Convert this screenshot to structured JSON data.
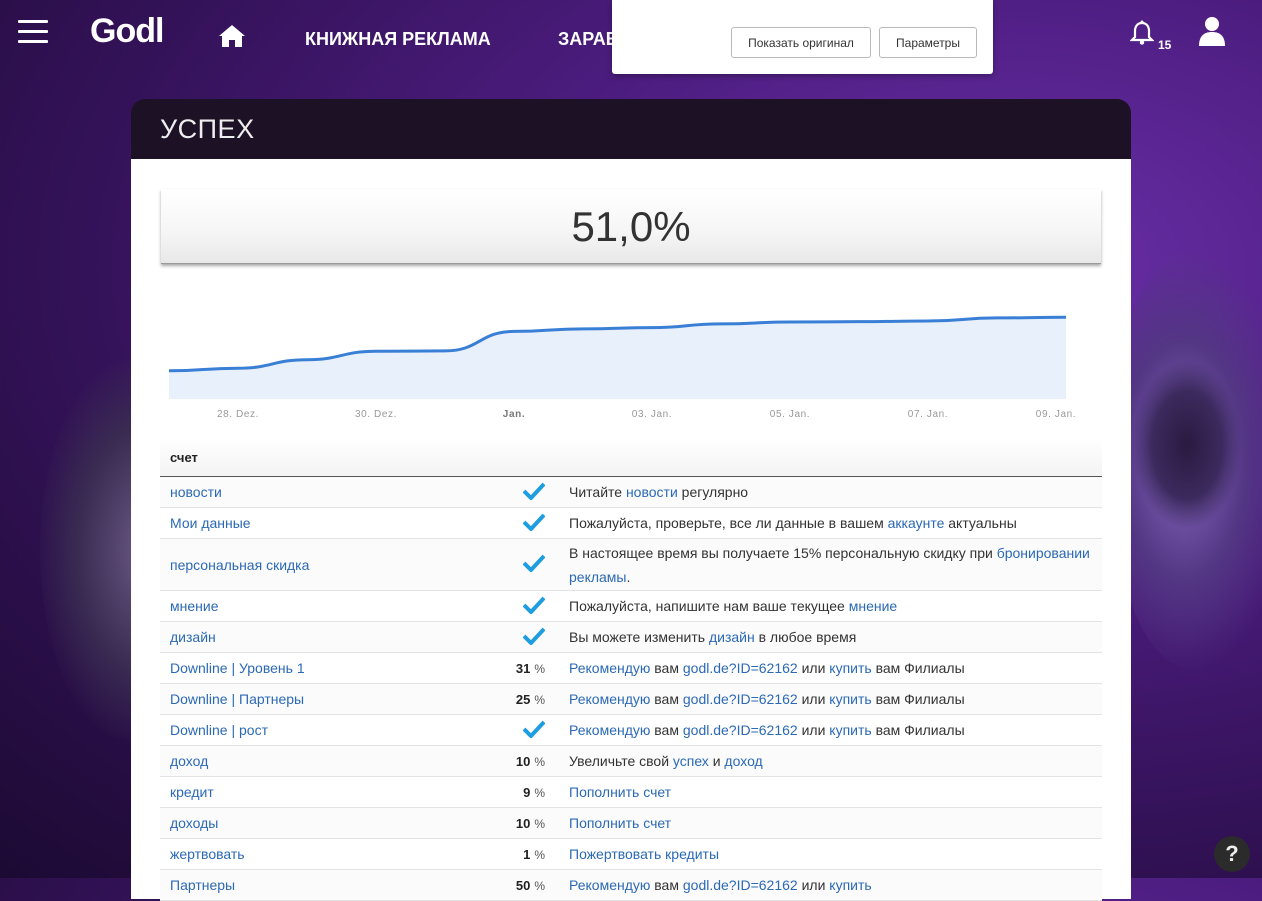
{
  "nav": {
    "logo": "Godl",
    "links": [
      "КНИЖНАЯ РЕКЛАМА",
      "ЗАРАБ"
    ],
    "notification_count": "15"
  },
  "popup": {
    "show_original": "Показать оригинал",
    "options": "Параметры"
  },
  "card": {
    "title": "УСПЕХ",
    "score": "51,0%"
  },
  "chart_data": {
    "type": "area",
    "x": [
      "27. Dez.",
      "28. Dez.",
      "29. Dez.",
      "30. Dez.",
      "31. Dez.",
      "Jan.",
      "02. Jan.",
      "03. Jan.",
      "04. Jan.",
      "05. Jan.",
      "06. Jan.",
      "07. Jan.",
      "08. Jan.",
      "09. Jan."
    ],
    "y": [
      34.0,
      34.8,
      37.5,
      40.2,
      40.3,
      46.5,
      47.3,
      47.7,
      48.9,
      49.5,
      49.6,
      49.8,
      50.8,
      51.0
    ],
    "x_tick_labels": [
      "28. Dez.",
      "30. Dez.",
      "Jan.",
      "03. Jan.",
      "05. Jan.",
      "07. Jan.",
      "09. Jan."
    ],
    "ylim": [
      25,
      60
    ],
    "grid": false,
    "colors": {
      "line": "#3a7fd6",
      "fill": "#e8f0fb"
    }
  },
  "table": {
    "header": "счет",
    "rows": [
      {
        "name": "новости",
        "value": "",
        "check": true,
        "desc": [
          [
            "Читайте ",
            false
          ],
          [
            "новости",
            true
          ],
          [
            " регулярно",
            false
          ]
        ]
      },
      {
        "name": "Мои данные",
        "value": "",
        "check": true,
        "desc": [
          [
            "Пожалуйста, проверьте, все ли данные в вашем ",
            false
          ],
          [
            "аккаунте",
            true
          ],
          [
            " актуальны",
            false
          ]
        ]
      },
      {
        "name": "персональная скидка",
        "value": "",
        "check": true,
        "tall": true,
        "desc": [
          [
            "В настоящее время вы получаете 15% персональную скидку при ",
            false
          ],
          [
            "бронировании рекламы",
            true
          ],
          [
            ".",
            false
          ]
        ]
      },
      {
        "name": "мнение",
        "value": "",
        "check": true,
        "desc": [
          [
            "Пожалуйста, напишите нам ваше текущее ",
            false
          ],
          [
            "мнение",
            true
          ]
        ]
      },
      {
        "name": "дизайн",
        "value": "",
        "check": true,
        "desc": [
          [
            "Вы можете изменить ",
            false
          ],
          [
            "дизайн",
            true
          ],
          [
            " в любое время",
            false
          ]
        ]
      },
      {
        "name": "Downline | Уровень 1",
        "value": "31",
        "check": false,
        "desc": [
          [
            "Рекомендую",
            true
          ],
          [
            " вам ",
            false
          ],
          [
            "godl.de?ID=62162",
            true
          ],
          [
            " или ",
            false
          ],
          [
            "купить",
            true
          ],
          [
            " вам Филиалы",
            false
          ]
        ]
      },
      {
        "name": "Downline | Партнеры",
        "value": "25",
        "check": false,
        "desc": [
          [
            "Рекомендую",
            true
          ],
          [
            " вам ",
            false
          ],
          [
            "godl.de?ID=62162",
            true
          ],
          [
            " или ",
            false
          ],
          [
            "купить",
            true
          ],
          [
            " вам Филиалы",
            false
          ]
        ]
      },
      {
        "name": "Downline | рост",
        "value": "",
        "check": true,
        "desc": [
          [
            "Рекомендую",
            true
          ],
          [
            " вам ",
            false
          ],
          [
            "godl.de?ID=62162",
            true
          ],
          [
            " или ",
            false
          ],
          [
            "купить",
            true
          ],
          [
            " вам Филиалы",
            false
          ]
        ]
      },
      {
        "name": "доход",
        "value": "10",
        "check": false,
        "desc": [
          [
            "Увеличьте свой ",
            false
          ],
          [
            "успех",
            true
          ],
          [
            " и ",
            false
          ],
          [
            "доход",
            true
          ]
        ]
      },
      {
        "name": "кредит",
        "value": "9",
        "check": false,
        "desc": [
          [
            "Пополнить счет",
            true
          ]
        ]
      },
      {
        "name": "доходы",
        "value": "10",
        "check": false,
        "desc": [
          [
            "Пополнить счет",
            true
          ]
        ]
      },
      {
        "name": "жертвовать",
        "value": "1",
        "check": false,
        "desc": [
          [
            "Пожертвовать кредиты",
            true
          ]
        ]
      },
      {
        "name": "Партнеры",
        "value": "50",
        "check": false,
        "desc": [
          [
            "Рекомендую",
            true
          ],
          [
            " вам ",
            false
          ],
          [
            "godl.de?ID=62162",
            true
          ],
          [
            " или ",
            false
          ],
          [
            "купить",
            true
          ]
        ]
      }
    ],
    "pct_symbol": "%"
  },
  "help": "?"
}
